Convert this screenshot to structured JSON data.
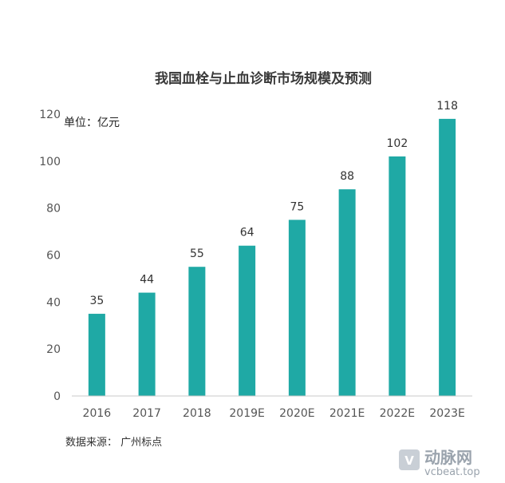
{
  "chart_data": {
    "type": "bar",
    "title": "我国血栓与止血诊断市场规模及预测",
    "unit_label": "单位：亿元",
    "categories": [
      "2016",
      "2017",
      "2018",
      "2019E",
      "2020E",
      "2021E",
      "2022E",
      "2023E"
    ],
    "values": [
      35,
      44,
      55,
      64,
      75,
      88,
      102,
      118
    ],
    "ylim": [
      0,
      120
    ],
    "yticks": [
      "0",
      "20",
      "40",
      "60",
      "80",
      "100",
      "120"
    ],
    "bar_color": "#1fa9a5",
    "grid": false,
    "legend": "none"
  },
  "source": "数据来源：  广州标点",
  "watermark": {
    "logo_text": "动脉网",
    "url": "vcbeat.top"
  }
}
